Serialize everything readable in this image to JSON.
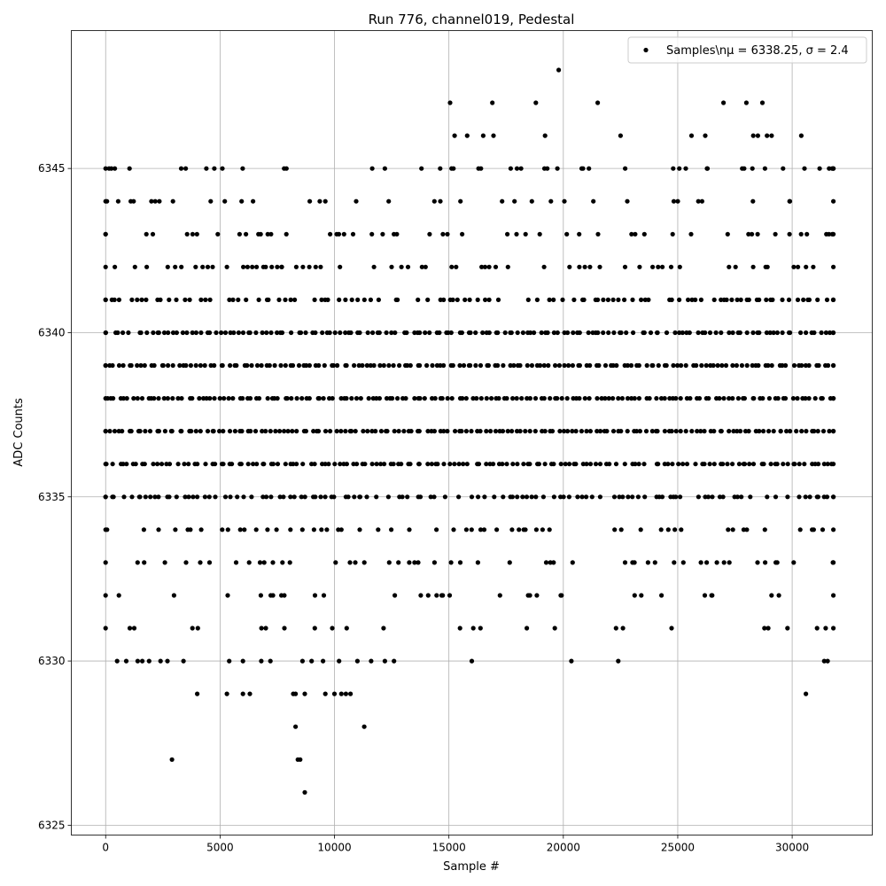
{
  "chart_data": {
    "type": "scatter",
    "title": "Run 776, channel019, Pedestal",
    "xlabel": "Sample #",
    "ylabel": "ADC Counts",
    "xlim": [
      -1500,
      33500
    ],
    "ylim": [
      6324.7,
      6349.2
    ],
    "x_ticks": [
      0,
      5000,
      10000,
      15000,
      20000,
      25000,
      30000
    ],
    "x_tick_labels": [
      "0",
      "5000",
      "10000",
      "15000",
      "20000",
      "25000",
      "30000"
    ],
    "y_ticks": [
      6325,
      6330,
      6335,
      6340,
      6345
    ],
    "y_tick_labels": [
      "6325",
      "6330",
      "6335",
      "6340",
      "6345"
    ],
    "grid": true,
    "legend_position": "upper-right",
    "marker_color": "#000000",
    "series": [
      {
        "name": "Samples\\nμ = 6338.25, σ = 2.4",
        "sample_range": [
          0,
          31800
        ],
        "level_bands": [
          {
            "y": 6341,
            "x_start": 0,
            "x_end": 31800,
            "fill": 0.65
          },
          {
            "y": 6340,
            "x_start": 0,
            "x_end": 31800,
            "fill": 0.95
          },
          {
            "y": 6339,
            "x_start": 0,
            "x_end": 31800,
            "fill": 1.0
          },
          {
            "y": 6338,
            "x_start": 0,
            "x_end": 31800,
            "fill": 1.0
          },
          {
            "y": 6337,
            "x_start": 0,
            "x_end": 31800,
            "fill": 1.0
          },
          {
            "y": 6336,
            "x_start": 0,
            "x_end": 31800,
            "fill": 0.95
          },
          {
            "y": 6335,
            "x_start": 0,
            "x_end": 31800,
            "fill": 0.7
          },
          {
            "y": 6342,
            "x_start": 0,
            "x_end": 31800,
            "fill": 0.4
          },
          {
            "y": 6343,
            "x_start": 0,
            "x_end": 31800,
            "fill": 0.3
          },
          {
            "y": 6334,
            "x_start": 0,
            "x_end": 31800,
            "fill": 0.4
          },
          {
            "y": 6333,
            "x_start": 0,
            "x_end": 31800,
            "fill": 0.3
          },
          {
            "y": 6332,
            "x_start": 0,
            "x_end": 31800,
            "fill": 0.18
          },
          {
            "y": 6331,
            "x_start": 0,
            "x_end": 31800,
            "fill": 0.12
          },
          {
            "y": 6344,
            "x_start": 0,
            "x_end": 31800,
            "fill": 0.2
          },
          {
            "y": 6345,
            "x_start": 0,
            "x_end": 31800,
            "fill": 0.1
          }
        ],
        "points": [
          [
            150,
            6345
          ],
          [
            250,
            6345
          ],
          [
            400,
            6345
          ],
          [
            3300,
            6345
          ],
          [
            3500,
            6345
          ],
          [
            4400,
            6345
          ],
          [
            4750,
            6345
          ],
          [
            5100,
            6345
          ],
          [
            7800,
            6345
          ],
          [
            7900,
            6345
          ],
          [
            12200,
            6345
          ],
          [
            13800,
            6345
          ],
          [
            15200,
            6345
          ],
          [
            16400,
            6345
          ],
          [
            17700,
            6345
          ],
          [
            19300,
            6345
          ],
          [
            20800,
            6345
          ],
          [
            22700,
            6345
          ],
          [
            24800,
            6345
          ],
          [
            26300,
            6345
          ],
          [
            27900,
            6345
          ],
          [
            29600,
            6345
          ],
          [
            31200,
            6345
          ],
          [
            31750,
            6345
          ],
          [
            15050,
            6347
          ],
          [
            16900,
            6347
          ],
          [
            18800,
            6347
          ],
          [
            21500,
            6347
          ],
          [
            27000,
            6347
          ],
          [
            28000,
            6347
          ],
          [
            28700,
            6347
          ],
          [
            19800,
            6348
          ],
          [
            15250,
            6346
          ],
          [
            15800,
            6346
          ],
          [
            16500,
            6346
          ],
          [
            16950,
            6346
          ],
          [
            19200,
            6346
          ],
          [
            22500,
            6346
          ],
          [
            25600,
            6346
          ],
          [
            26200,
            6346
          ],
          [
            28300,
            6346
          ],
          [
            28500,
            6346
          ],
          [
            28900,
            6346
          ],
          [
            29100,
            6346
          ],
          [
            30400,
            6346
          ],
          [
            500,
            6330
          ],
          [
            900,
            6330
          ],
          [
            1400,
            6330
          ],
          [
            1600,
            6330
          ],
          [
            1900,
            6330
          ],
          [
            2400,
            6330
          ],
          [
            2700,
            6330
          ],
          [
            3400,
            6330
          ],
          [
            5400,
            6330
          ],
          [
            6000,
            6330
          ],
          [
            6800,
            6330
          ],
          [
            7200,
            6330
          ],
          [
            8600,
            6330
          ],
          [
            9000,
            6330
          ],
          [
            9500,
            6330
          ],
          [
            10200,
            6330
          ],
          [
            11000,
            6330
          ],
          [
            11600,
            6330
          ],
          [
            12200,
            6330
          ],
          [
            12600,
            6330
          ],
          [
            16000,
            6330
          ],
          [
            20350,
            6330
          ],
          [
            22400,
            6330
          ],
          [
            31400,
            6330
          ],
          [
            31550,
            6330
          ],
          [
            4000,
            6329
          ],
          [
            5300,
            6329
          ],
          [
            6000,
            6329
          ],
          [
            6300,
            6329
          ],
          [
            8200,
            6329
          ],
          [
            8300,
            6329
          ],
          [
            8700,
            6329
          ],
          [
            9600,
            6329
          ],
          [
            10000,
            6329
          ],
          [
            10300,
            6329
          ],
          [
            10500,
            6329
          ],
          [
            10700,
            6329
          ],
          [
            30600,
            6329
          ],
          [
            8300,
            6328
          ],
          [
            11300,
            6328
          ],
          [
            2900,
            6327
          ],
          [
            8400,
            6327
          ],
          [
            8500,
            6327
          ],
          [
            8700,
            6326
          ]
        ]
      }
    ]
  }
}
